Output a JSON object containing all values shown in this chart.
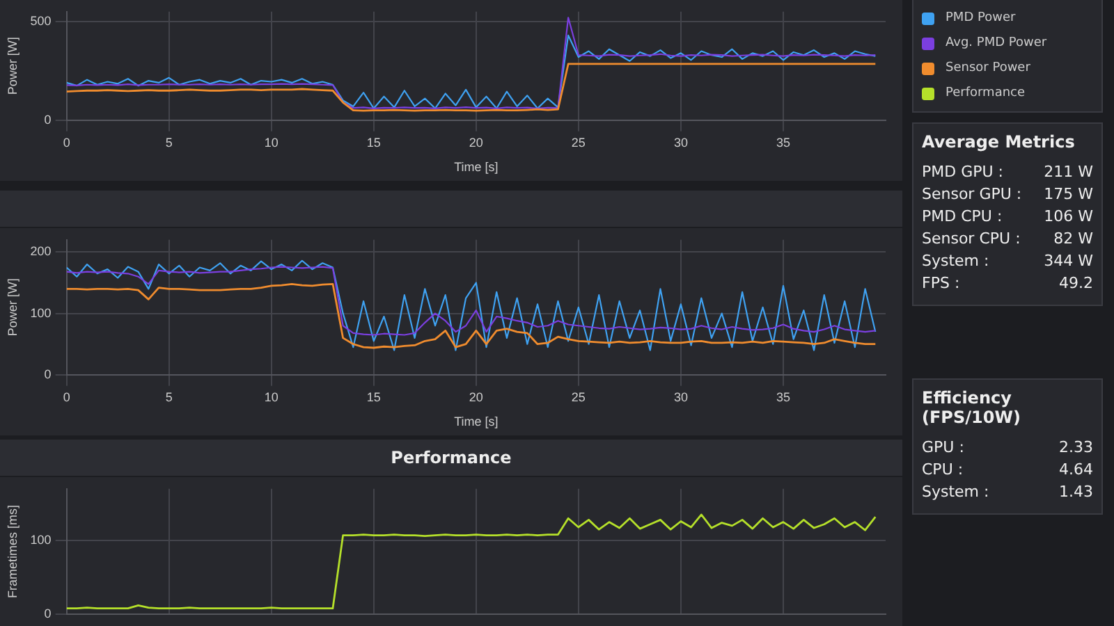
{
  "chart_data": [
    {
      "type": "line",
      "xlabel": "Time [s]",
      "ylabel": "Power [W]",
      "xlim": [
        0,
        40
      ],
      "xticks": [
        0,
        5,
        10,
        15,
        20,
        25,
        30,
        35
      ],
      "ylim": [
        0,
        550
      ],
      "yticks": [
        0,
        500
      ],
      "grid": true,
      "legend": "right",
      "x": [
        0,
        0.5,
        1,
        1.5,
        2,
        2.5,
        3,
        3.5,
        4,
        4.5,
        5,
        5.5,
        6,
        6.5,
        7,
        7.5,
        8,
        8.5,
        9,
        9.5,
        10,
        10.5,
        11,
        11.5,
        12,
        12.5,
        13,
        13.5,
        14,
        14.5,
        15,
        15.5,
        16,
        16.5,
        17,
        17.5,
        18,
        18.5,
        19,
        19.5,
        20,
        20.5,
        21,
        21.5,
        22,
        22.5,
        23,
        23.5,
        24,
        24.5,
        25,
        25.5,
        26,
        26.5,
        27,
        27.5,
        28,
        28.5,
        29,
        29.5,
        30,
        30.5,
        31,
        31.5,
        32,
        32.5,
        33,
        33.5,
        34,
        34.5,
        35,
        35.5,
        36,
        36.5,
        37,
        37.5,
        38,
        38.5,
        39,
        39.5
      ],
      "series": [
        {
          "name": "PMD Power",
          "color": "#3fa2f2",
          "values": [
            190,
            175,
            205,
            180,
            195,
            185,
            210,
            175,
            200,
            190,
            215,
            180,
            195,
            205,
            185,
            200,
            190,
            210,
            180,
            200,
            195,
            205,
            190,
            210,
            185,
            195,
            180,
            100,
            70,
            140,
            60,
            120,
            65,
            150,
            70,
            110,
            60,
            135,
            75,
            155,
            65,
            120,
            60,
            145,
            70,
            125,
            60,
            110,
            65,
            430,
            320,
            350,
            310,
            360,
            330,
            300,
            345,
            325,
            355,
            315,
            340,
            305,
            350,
            330,
            320,
            360,
            310,
            340,
            325,
            350,
            305,
            345,
            330,
            355,
            320,
            340,
            310,
            350,
            335,
            325
          ]
        },
        {
          "name": "Avg. PMD Power",
          "color": "#7b3fe0",
          "values": [
            178,
            176,
            180,
            178,
            180,
            178,
            182,
            178,
            180,
            180,
            182,
            180,
            180,
            182,
            180,
            182,
            180,
            182,
            180,
            182,
            182,
            184,
            182,
            184,
            182,
            180,
            178,
            90,
            62,
            65,
            60,
            63,
            62,
            65,
            62,
            63,
            60,
            65,
            62,
            66,
            62,
            64,
            60,
            65,
            62,
            64,
            60,
            63,
            62,
            520,
            330,
            328,
            325,
            332,
            330,
            325,
            328,
            330,
            335,
            328,
            325,
            330,
            328,
            332,
            330,
            325,
            328,
            330,
            332,
            328,
            325,
            330,
            328,
            332,
            330,
            328,
            325,
            330,
            328,
            330
          ]
        },
        {
          "name": "Sensor Power",
          "color": "#f08c2e",
          "values": [
            145,
            148,
            150,
            150,
            152,
            150,
            148,
            150,
            152,
            150,
            150,
            152,
            155,
            152,
            150,
            150,
            152,
            155,
            155,
            152,
            155,
            155,
            155,
            158,
            155,
            152,
            150,
            90,
            50,
            48,
            50,
            50,
            52,
            50,
            48,
            50,
            50,
            52,
            50,
            50,
            48,
            50,
            52,
            50,
            50,
            52,
            55,
            52,
            55,
            285,
            285,
            285,
            285,
            285,
            285,
            285,
            285,
            285,
            285,
            285,
            285,
            285,
            285,
            285,
            285,
            285,
            285,
            285,
            285,
            285,
            285,
            285,
            285,
            285,
            285,
            285,
            285,
            285,
            285,
            285
          ]
        }
      ]
    },
    {
      "type": "line",
      "xlabel": "Time [s]",
      "ylabel": "Power [W]",
      "xlim": [
        0,
        40
      ],
      "xticks": [
        0,
        5,
        10,
        15,
        20,
        25,
        30,
        35
      ],
      "ylim": [
        0,
        220
      ],
      "yticks": [
        0,
        100,
        200
      ],
      "grid": true,
      "x": [
        0,
        0.5,
        1,
        1.5,
        2,
        2.5,
        3,
        3.5,
        4,
        4.5,
        5,
        5.5,
        6,
        6.5,
        7,
        7.5,
        8,
        8.5,
        9,
        9.5,
        10,
        10.5,
        11,
        11.5,
        12,
        12.5,
        13,
        13.5,
        14,
        14.5,
        15,
        15.5,
        16,
        16.5,
        17,
        17.5,
        18,
        18.5,
        19,
        19.5,
        20,
        20.5,
        21,
        21.5,
        22,
        22.5,
        23,
        23.5,
        24,
        24.5,
        25,
        25.5,
        26,
        26.5,
        27,
        27.5,
        28,
        28.5,
        29,
        29.5,
        30,
        30.5,
        31,
        31.5,
        32,
        32.5,
        33,
        33.5,
        34,
        34.5,
        35,
        35.5,
        36,
        36.5,
        37,
        37.5,
        38,
        38.5,
        39,
        39.5
      ],
      "series": [
        {
          "color": "#3fa2f2",
          "values": [
            175,
            160,
            180,
            165,
            172,
            158,
            176,
            168,
            140,
            180,
            165,
            178,
            160,
            175,
            170,
            182,
            165,
            178,
            170,
            185,
            172,
            180,
            170,
            186,
            172,
            182,
            175,
            100,
            45,
            120,
            55,
            95,
            40,
            130,
            60,
            140,
            80,
            130,
            40,
            125,
            150,
            45,
            135,
            60,
            125,
            50,
            115,
            45,
            120,
            55,
            110,
            50,
            130,
            45,
            120,
            60,
            105,
            40,
            140,
            55,
            115,
            48,
            125,
            60,
            100,
            45,
            135,
            55,
            110,
            50,
            145,
            58,
            105,
            40,
            130,
            52,
            120,
            45,
            140,
            70
          ]
        },
        {
          "color": "#7b3fe0",
          "values": [
            168,
            166,
            168,
            167,
            168,
            166,
            165,
            160,
            148,
            170,
            168,
            167,
            168,
            166,
            167,
            168,
            168,
            170,
            172,
            173,
            175,
            176,
            175,
            174,
            175,
            176,
            174,
            80,
            68,
            66,
            65,
            67,
            66,
            65,
            68,
            85,
            100,
            88,
            70,
            80,
            105,
            70,
            95,
            92,
            88,
            85,
            78,
            80,
            88,
            82,
            80,
            78,
            76,
            75,
            78,
            76,
            74,
            75,
            77,
            76,
            74,
            75,
            80,
            76,
            74,
            78,
            75,
            73,
            74,
            76,
            82,
            75,
            72,
            70,
            74,
            80,
            74,
            72,
            70,
            72
          ]
        },
        {
          "color": "#f08c2e",
          "values": [
            140,
            140,
            139,
            140,
            140,
            139,
            140,
            138,
            123,
            142,
            140,
            140,
            139,
            138,
            138,
            138,
            139,
            140,
            140,
            142,
            145,
            146,
            148,
            146,
            145,
            147,
            148,
            60,
            50,
            45,
            44,
            46,
            45,
            47,
            48,
            55,
            58,
            72,
            45,
            50,
            72,
            50,
            72,
            75,
            70,
            68,
            50,
            52,
            62,
            58,
            55,
            54,
            53,
            52,
            54,
            52,
            53,
            55,
            53,
            52,
            52,
            54,
            55,
            52,
            52,
            53,
            52,
            54,
            52,
            55,
            54,
            53,
            52,
            50,
            52,
            58,
            55,
            52,
            50,
            50
          ]
        }
      ]
    },
    {
      "type": "line",
      "title": "Performance",
      "ylabel": "Frametimes [ms]",
      "xlim": [
        0,
        40
      ],
      "xticks": [
        0,
        5,
        10,
        15,
        20,
        25,
        30,
        35
      ],
      "ylim": [
        0,
        170
      ],
      "yticks": [
        0,
        100
      ],
      "grid": true,
      "legend": "right",
      "tick_labels": "y",
      "x": [
        0,
        0.5,
        1,
        1.5,
        2,
        2.5,
        3,
        3.5,
        4,
        4.5,
        5,
        5.5,
        6,
        6.5,
        7,
        7.5,
        8,
        8.5,
        9,
        9.5,
        10,
        10.5,
        11,
        11.5,
        12,
        12.5,
        13,
        13.5,
        14,
        14.5,
        15,
        15.5,
        16,
        16.5,
        17,
        17.5,
        18,
        18.5,
        19,
        19.5,
        20,
        20.5,
        21,
        21.5,
        22,
        22.5,
        23,
        23.5,
        24,
        24.5,
        25,
        25.5,
        26,
        26.5,
        27,
        27.5,
        28,
        28.5,
        29,
        29.5,
        30,
        30.5,
        31,
        31.5,
        32,
        32.5,
        33,
        33.5,
        34,
        34.5,
        35,
        35.5,
        36,
        36.5,
        37,
        37.5,
        38,
        38.5,
        39,
        39.5
      ],
      "series": [
        {
          "name": "Performance",
          "color": "#b5e02a",
          "values": [
            8,
            8,
            9,
            8,
            8,
            8,
            8,
            12,
            9,
            8,
            8,
            8,
            9,
            8,
            8,
            8,
            8,
            8,
            8,
            8,
            9,
            8,
            8,
            8,
            8,
            8,
            8,
            107,
            107,
            108,
            107,
            107,
            108,
            107,
            107,
            106,
            107,
            108,
            107,
            107,
            108,
            107,
            107,
            108,
            107,
            108,
            107,
            108,
            108,
            130,
            118,
            128,
            115,
            125,
            117,
            130,
            116,
            122,
            128,
            115,
            126,
            118,
            135,
            117,
            124,
            120,
            128,
            116,
            130,
            118,
            125,
            116,
            128,
            117,
            122,
            130,
            118,
            125,
            114,
            132
          ]
        }
      ]
    },
    {
      "type": "other",
      "title": "Average Metrics",
      "annotations": [
        "PMD GPU :",
        "211 W",
        "Sensor GPU :",
        "175 W",
        "PMD CPU :",
        "106 W",
        "Sensor CPU :",
        "82 W",
        "System :",
        "344 W",
        "FPS :",
        "49.2"
      ]
    },
    {
      "type": "other",
      "title": "Efficiency (FPS/10W)",
      "annotations": [
        "GPU :",
        "2.33",
        "CPU :",
        "4.64",
        "System :",
        "1.43"
      ]
    }
  ]
}
